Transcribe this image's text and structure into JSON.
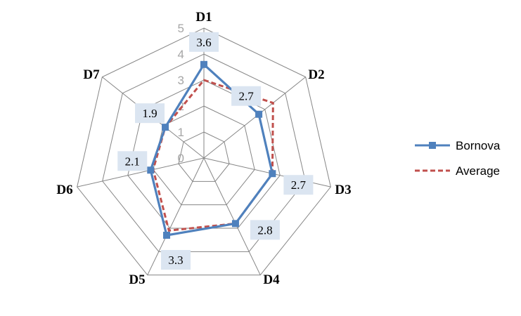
{
  "chart_data": {
    "type": "radar",
    "categories": [
      "D1",
      "D2",
      "D3",
      "D4",
      "D5",
      "D6",
      "D7"
    ],
    "rlim": [
      0,
      5
    ],
    "ticks": [
      "0",
      "1",
      "2",
      "3",
      "4",
      "5"
    ],
    "grid": true,
    "legend_position": "right",
    "series": [
      {
        "name": "Bornova",
        "values": [
          3.6,
          2.7,
          2.7,
          2.8,
          3.3,
          2.1,
          1.9
        ],
        "data_labels": [
          "3.6",
          "2.7",
          "2.7",
          "2.8",
          "3.3",
          "2.1",
          "1.9"
        ],
        "color": "#4f81bd",
        "style": "solid",
        "marker": "square"
      },
      {
        "name": "Average",
        "values": [
          3.0,
          3.4,
          2.7,
          2.8,
          3.1,
          2.0,
          1.9
        ],
        "color": "#c0504d",
        "style": "dashed",
        "marker": "none"
      }
    ]
  }
}
